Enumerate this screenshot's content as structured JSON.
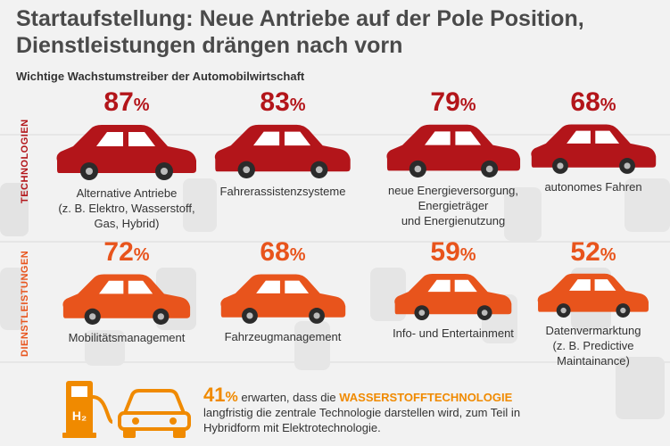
{
  "title_line1": "Startaufstellung: Neue Antriebe auf der Pole Position,",
  "title_line2": "Dienstleistungen drängen nach vorn",
  "subtitle": "Wichtige Wachstumstreiber der Automobilwirtschaft",
  "colors": {
    "technology": "#b3151a",
    "services": "#e8541c",
    "accent": "#f08a00"
  },
  "chart_data": {
    "type": "pictogram",
    "title": "Startaufstellung: Neue Antriebe auf der Pole Position, Dienstleistungen drängen nach vorn",
    "subtitle": "Wichtige Wachstumstreiber der Automobilwirtschaft",
    "unit": "%",
    "groups": [
      {
        "name": "TECHNOLOGIEN",
        "items": [
          {
            "value": 87,
            "label": [
              "Alternative Antriebe",
              "(z. B. Elektro, Wasserstoff,",
              "Gas, Hybrid)"
            ]
          },
          {
            "value": 83,
            "label": [
              "Fahrerassistenzsysteme"
            ]
          },
          {
            "value": 79,
            "label": [
              "neue Energieversorgung,",
              "Energieträger",
              "und Energienutzung"
            ]
          },
          {
            "value": 68,
            "label": [
              "autonomes Fahren"
            ]
          }
        ]
      },
      {
        "name": "DIENSTLEISTUNGEN",
        "items": [
          {
            "value": 72,
            "label": [
              "Mobilitätsmanagement"
            ]
          },
          {
            "value": 68,
            "label": [
              "Fahrzeugmanagement"
            ]
          },
          {
            "value": 59,
            "label": [
              "Info- und Entertainment"
            ]
          },
          {
            "value": 52,
            "label": [
              "Datenvermarktung",
              "(z. B. Predictive",
              "Maintainance)"
            ]
          }
        ]
      }
    ],
    "footer": {
      "value": 41,
      "text_before": "erwarten, dass die",
      "highlight": "WASSERSTOFFTECHNOLOGIE",
      "text_after": "langfristig die zentrale Technologie darstellen wird, zum Teil in Hybridform mit Elektrotechnologie.",
      "icon": "hydrogen-fuel-pump-and-car-icon",
      "pump_label": "H₂"
    }
  }
}
